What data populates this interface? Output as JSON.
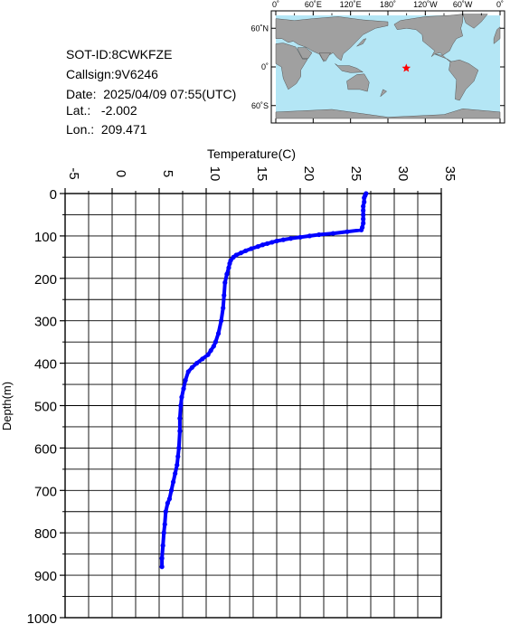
{
  "info": {
    "sot_id": "SOT-ID:8CWKFZE",
    "callsign": "Callsign:9V6246",
    "date": "Date:  2025/04/09 07:55(UTC)",
    "lat": "Lat.:   -2.002",
    "lon": "Lon.:  209.471"
  },
  "map": {
    "lon_labels": [
      "0˚",
      "60˚E",
      "120˚E",
      "180˚",
      "120˚W",
      "60˚W",
      "0˚"
    ],
    "lat_labels": [
      "60˚N",
      "0˚",
      "60˚S"
    ],
    "ocean_color": "#b4e6f5",
    "land_color": "#a0a0a0",
    "marker_color": "#ff0000",
    "marker": {
      "lat": -2.002,
      "lon": 209.471
    }
  },
  "chart_data": {
    "type": "line",
    "xlabel": "Temperature(C)",
    "ylabel": "Depth(m)",
    "xlim": [
      -5,
      35
    ],
    "ylim": [
      0,
      1000
    ],
    "x_axis_position": "top",
    "y_inverted": true,
    "xticks": [
      -5,
      0,
      5,
      10,
      15,
      20,
      25,
      30,
      35
    ],
    "yticks": [
      0,
      100,
      200,
      300,
      400,
      500,
      600,
      700,
      800,
      900,
      1000
    ],
    "grid": true,
    "series_color": "#0000ff",
    "series": [
      {
        "depth": [
          0,
          5,
          10,
          20,
          30,
          40,
          50,
          60,
          70,
          80,
          86,
          90,
          94,
          97,
          100,
          103,
          106,
          109,
          112,
          115,
          118,
          121,
          125,
          130,
          135,
          140,
          145,
          150,
          158,
          165,
          175,
          190,
          210,
          240,
          270,
          300,
          330,
          350,
          360,
          370,
          380,
          390,
          400,
          410,
          420,
          440,
          460,
          480,
          500,
          530,
          560,
          600,
          620,
          640,
          660,
          680,
          700,
          720,
          730,
          750,
          780,
          800,
          830,
          860,
          880
        ],
        "temperature": [
          27.0,
          26.9,
          26.8,
          26.8,
          26.7,
          26.7,
          26.7,
          26.7,
          26.7,
          26.6,
          26.5,
          25.0,
          23.5,
          22.0,
          21.0,
          20.0,
          19.0,
          18.2,
          17.5,
          17.0,
          16.5,
          16.0,
          15.5,
          14.8,
          14.2,
          13.7,
          13.2,
          12.9,
          12.6,
          12.5,
          12.4,
          12.2,
          12.0,
          11.9,
          11.8,
          11.6,
          11.3,
          11.0,
          10.8,
          10.5,
          10.2,
          9.6,
          9.0,
          8.5,
          8.1,
          7.8,
          7.6,
          7.4,
          7.3,
          7.2,
          7.2,
          7.1,
          7.0,
          6.9,
          6.7,
          6.5,
          6.3,
          6.1,
          5.9,
          5.7,
          5.6,
          5.5,
          5.4,
          5.3,
          5.3
        ]
      }
    ]
  }
}
